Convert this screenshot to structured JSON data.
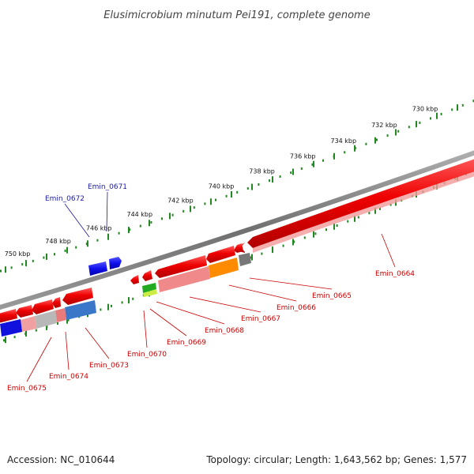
{
  "title": "Elusimicrobium minutum Pei191, complete genome",
  "footer": {
    "accession": "Accession: NC_010644",
    "stats": "Topology: circular; Length: 1,643,562 bp; Genes: 1,577"
  },
  "colors": {
    "plus_strand_gene": "#1a1aee",
    "minus_strand_gene": "#ee1111",
    "minus_label": "#cc0000",
    "plus_label": "#1a1aa0",
    "tick": "#228822",
    "backbone": "#8a8a8a",
    "callout": "#cc0000"
  },
  "scale_ticks": [
    {
      "label": "730 kbp",
      "kbp": 730
    },
    {
      "label": "732 kbp",
      "kbp": 732
    },
    {
      "label": "734 kbp",
      "kbp": 734
    },
    {
      "label": "736 kbp",
      "kbp": 736
    },
    {
      "label": "738 kbp",
      "kbp": 738
    },
    {
      "label": "740 kbp",
      "kbp": 740
    },
    {
      "label": "742 kbp",
      "kbp": 742
    },
    {
      "label": "744 kbp",
      "kbp": 744
    },
    {
      "label": "746 kbp",
      "kbp": 746
    },
    {
      "label": "748 kbp",
      "kbp": 748
    },
    {
      "label": "750 kbp",
      "kbp": 750
    }
  ],
  "gene_labels": [
    {
      "id": "Emin_0664",
      "label": "Emin_0664",
      "strand": "-"
    },
    {
      "id": "Emin_0665",
      "label": "Emin_0665",
      "strand": "-"
    },
    {
      "id": "Emin_0666",
      "label": "Emin_0666",
      "strand": "-"
    },
    {
      "id": "Emin_0667",
      "label": "Emin_0667",
      "strand": "-"
    },
    {
      "id": "Emin_0668",
      "label": "Emin_0668",
      "strand": "-"
    },
    {
      "id": "Emin_0669",
      "label": "Emin_0669",
      "strand": "-"
    },
    {
      "id": "Emin_0670",
      "label": "Emin_0670",
      "strand": "-"
    },
    {
      "id": "Emin_0671",
      "label": "Emin_0671",
      "strand": "+"
    },
    {
      "id": "Emin_0672",
      "label": "Emin_0672",
      "strand": "+"
    },
    {
      "id": "Emin_0673",
      "label": "Emin_0673",
      "strand": "-"
    },
    {
      "id": "Emin_0674",
      "label": "Emin_0674",
      "strand": "-"
    },
    {
      "id": "Emin_0675",
      "label": "Emin_0675",
      "strand": "-"
    }
  ]
}
